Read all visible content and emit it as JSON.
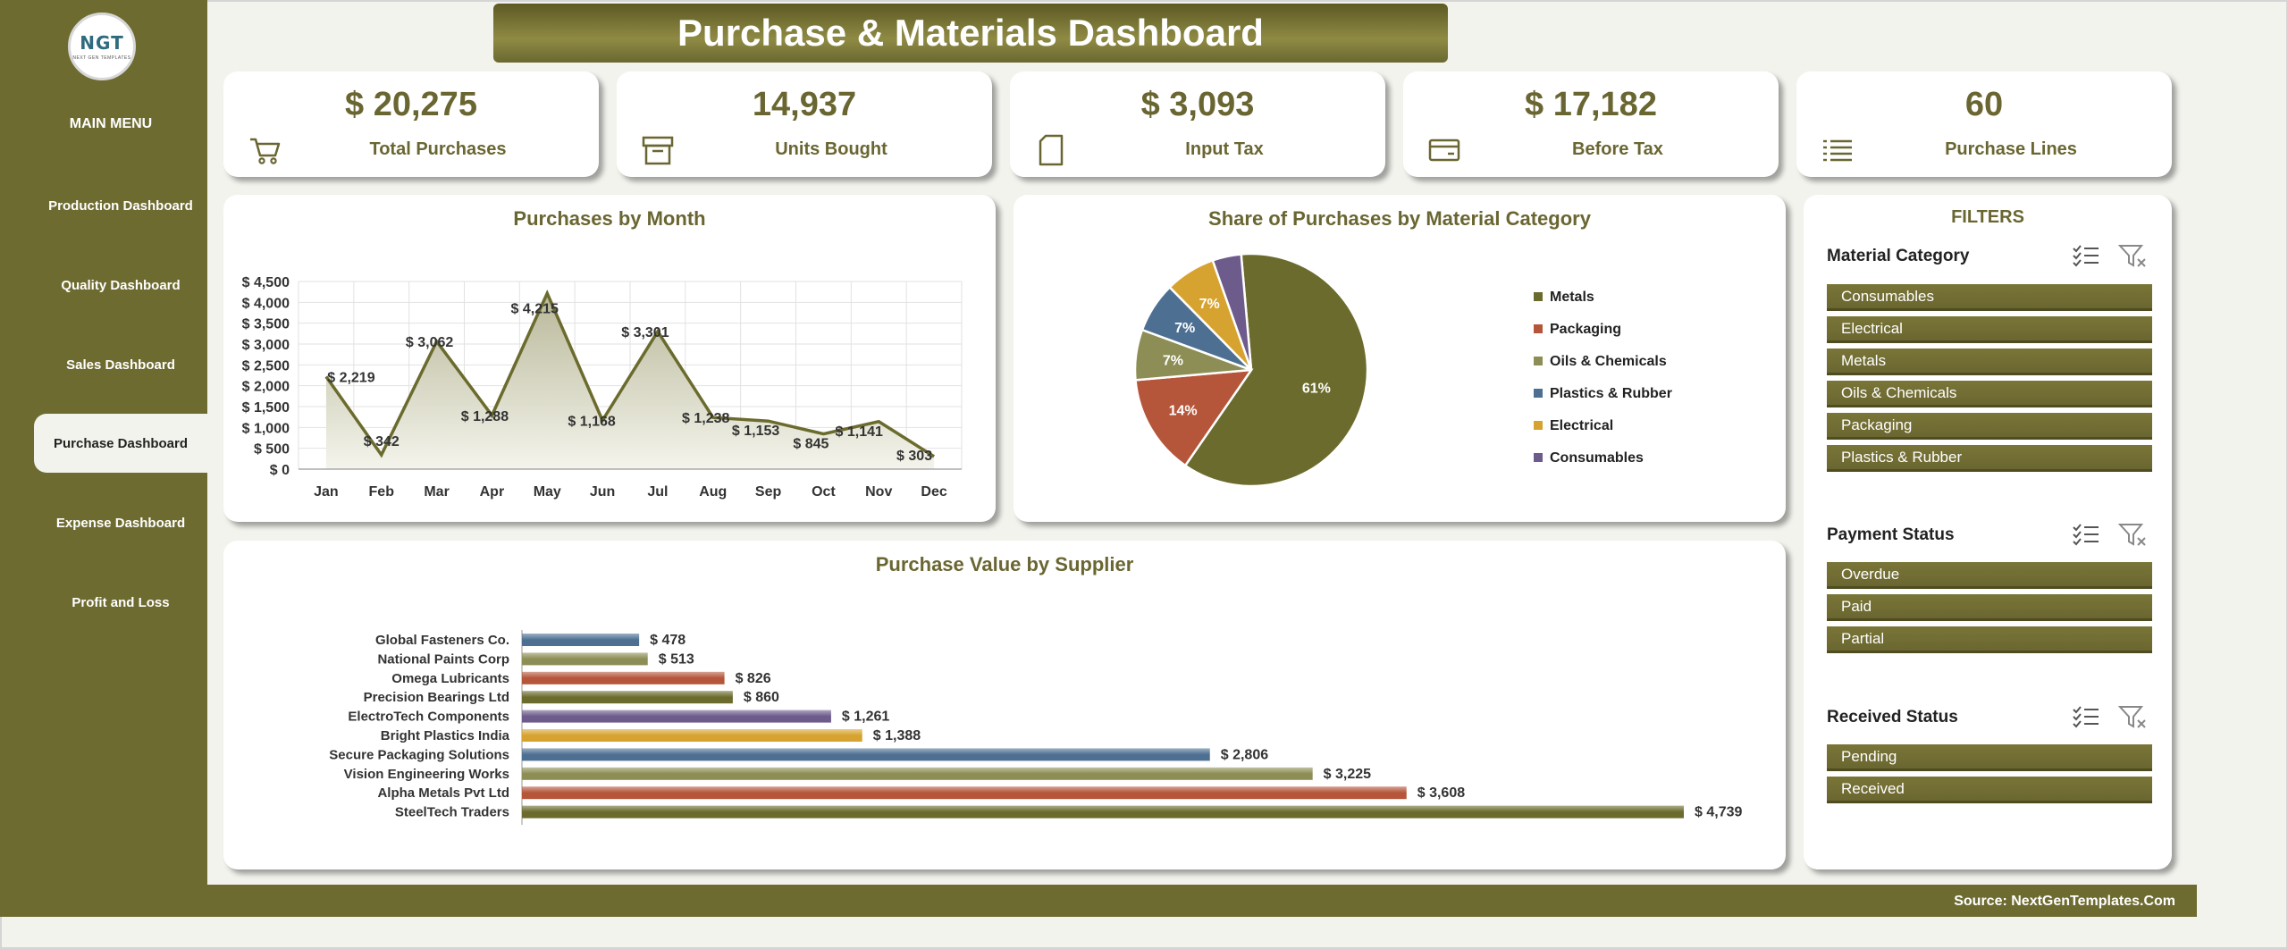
{
  "brand": {
    "logo_text": "NGT",
    "logo_subtext": "NEXT GEN TEMPLATES"
  },
  "sidebar": {
    "menu_title": "MAIN MENU",
    "items": [
      {
        "label": "Production Dashboard",
        "active": false
      },
      {
        "label": "Quality Dashboard",
        "active": false
      },
      {
        "label": "Sales Dashboard",
        "active": false
      },
      {
        "label": "Purchase Dashboard",
        "active": true
      },
      {
        "label": "Expense Dashboard",
        "active": false
      },
      {
        "label": "Profit and Loss",
        "active": false
      }
    ]
  },
  "header": {
    "title": "Purchase & Materials Dashboard"
  },
  "kpis": [
    {
      "value": "$ 20,275",
      "label": "Total Purchases",
      "icon": "cart-icon"
    },
    {
      "value": "14,937",
      "label": "Units Bought",
      "icon": "box-icon"
    },
    {
      "value": "$ 3,093",
      "label": "Input Tax",
      "icon": "document-icon"
    },
    {
      "value": "$ 17,182",
      "label": "Before Tax",
      "icon": "card-icon"
    },
    {
      "value": "60",
      "label": "Purchase Lines",
      "icon": "list-icon"
    }
  ],
  "filters": {
    "heading": "FILTERS",
    "groups": [
      {
        "title": "Material Category",
        "options": [
          "Consumables",
          "Electrical",
          "Metals",
          "Oils & Chemicals",
          "Packaging",
          "Plastics & Rubber"
        ]
      },
      {
        "title": "Payment Status",
        "options": [
          "Overdue",
          "Paid",
          "Partial"
        ]
      },
      {
        "title": "Received Status",
        "options": [
          "Pending",
          "Received"
        ]
      }
    ]
  },
  "footer": {
    "source": "Source: NextGenTemplates.Com"
  },
  "colors": {
    "olive_dark": "#6e6b31",
    "olive_mid": "#6a6632",
    "metals": "#6b6b2e",
    "packaging": "#b5553a",
    "oils": "#8d8e55",
    "plastics": "#4d7092",
    "electrical": "#d7a330",
    "consumables": "#6d5b8c"
  },
  "chart_data": [
    {
      "type": "area",
      "title": "Purchases by Month",
      "categories": [
        "Jan",
        "Feb",
        "Mar",
        "Apr",
        "May",
        "Jun",
        "Jul",
        "Aug",
        "Sep",
        "Oct",
        "Nov",
        "Dec"
      ],
      "values": [
        2219,
        342,
        3062,
        1288,
        4215,
        1168,
        3301,
        1238,
        1153,
        845,
        1141,
        303
      ],
      "data_labels": [
        "$ 2,219",
        "$ 342",
        "$ 3,062",
        "$ 1,288",
        "$ 4,215",
        "$ 1,168",
        "$ 3,301",
        "$ 1,238",
        "$ 1,153",
        "$ 845",
        "$ 1,141",
        "$ 303"
      ],
      "y_ticks": [
        "$ 0",
        "$ 500",
        "$ 1,000",
        "$ 1,500",
        "$ 2,000",
        "$ 2,500",
        "$ 3,000",
        "$ 3,500",
        "$ 4,000",
        "$ 4,500"
      ],
      "ylim": [
        0,
        4500
      ],
      "grid": true
    },
    {
      "type": "pie",
      "title": "Share of Purchases by Material Category",
      "categories": [
        "Metals",
        "Packaging",
        "Oils & Chemicals",
        "Plastics & Rubber",
        "Electrical",
        "Consumables"
      ],
      "values": [
        61,
        14,
        7,
        7,
        7,
        4
      ],
      "data_labels": [
        "61%",
        "14%",
        "7%",
        "7%",
        "7%",
        ""
      ],
      "colors": [
        "#6b6b2e",
        "#b5553a",
        "#8d8e55",
        "#4d7092",
        "#d7a330",
        "#6d5b8c"
      ],
      "legend": "right"
    },
    {
      "type": "bar",
      "orientation": "horizontal",
      "title": "Purchase Value by Supplier",
      "categories": [
        "Global Fasteners Co.",
        "National Paints Corp",
        "Omega Lubricants",
        "Precision Bearings Ltd",
        "ElectroTech Components",
        "Bright Plastics India",
        "Secure Packaging Solutions",
        "Vision Engineering Works",
        "Alpha Metals Pvt Ltd",
        "SteelTech Traders"
      ],
      "values": [
        478,
        513,
        826,
        860,
        1261,
        1388,
        2806,
        3225,
        3608,
        4739
      ],
      "data_labels": [
        "$ 478",
        "$ 513",
        "$ 826",
        "$ 860",
        "$ 1,261",
        "$ 1,388",
        "$ 2,806",
        "$ 3,225",
        "$ 3,608",
        "$ 4,739"
      ],
      "colors": [
        "#4d7092",
        "#8d8e55",
        "#b5553a",
        "#6b6b2e",
        "#6d5b8c",
        "#d7a330",
        "#4d7092",
        "#8d8e55",
        "#b5553a",
        "#6b6b2e"
      ]
    }
  ]
}
